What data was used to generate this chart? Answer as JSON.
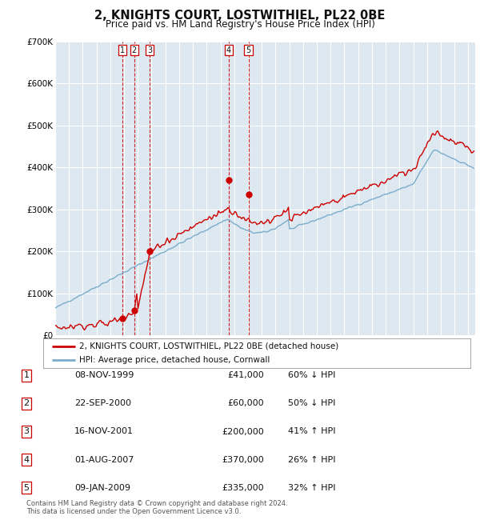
{
  "title": "2, KNIGHTS COURT, LOSTWITHIEL, PL22 0BE",
  "subtitle": "Price paid vs. HM Land Registry's House Price Index (HPI)",
  "footer1": "Contains HM Land Registry data © Crown copyright and database right 2024.",
  "footer2": "This data is licensed under the Open Government Licence v3.0.",
  "legend_label_red": "2, KNIGHTS COURT, LOSTWITHIEL, PL22 0BE (detached house)",
  "legend_label_blue": "HPI: Average price, detached house, Cornwall",
  "sale_dates_num": [
    1999.86,
    2000.73,
    2001.88,
    2007.58,
    2009.03
  ],
  "sale_prices": [
    41000,
    60000,
    200000,
    370000,
    335000
  ],
  "sale_labels": [
    "1",
    "2",
    "3",
    "4",
    "5"
  ],
  "sale_table": [
    [
      "1",
      "08-NOV-1999",
      "£41,000",
      "60% ↓ HPI"
    ],
    [
      "2",
      "22-SEP-2000",
      "£60,000",
      "50% ↓ HPI"
    ],
    [
      "3",
      "16-NOV-2001",
      "£200,000",
      "41% ↑ HPI"
    ],
    [
      "4",
      "01-AUG-2007",
      "£370,000",
      "26% ↑ HPI"
    ],
    [
      "5",
      "09-JAN-2009",
      "£335,000",
      "32% ↑ HPI"
    ]
  ],
  "color_red": "#cc0000",
  "color_blue": "#7aadcc",
  "color_bg": "#dde8f0",
  "color_grid": "#ffffff",
  "ylim": [
    0,
    700000
  ],
  "xlim_start": 1995.0,
  "xlim_end": 2025.5,
  "yticks": [
    0,
    100000,
    200000,
    300000,
    400000,
    500000,
    600000,
    700000
  ],
  "ytick_labels": [
    "£0",
    "£100K",
    "£200K",
    "£300K",
    "£400K",
    "£500K",
    "£600K",
    "£700K"
  ],
  "xticks": [
    1995,
    1996,
    1997,
    1998,
    1999,
    2000,
    2001,
    2002,
    2003,
    2004,
    2005,
    2006,
    2007,
    2008,
    2009,
    2010,
    2011,
    2012,
    2013,
    2014,
    2015,
    2016,
    2017,
    2018,
    2019,
    2020,
    2021,
    2022,
    2023,
    2024,
    2025
  ]
}
